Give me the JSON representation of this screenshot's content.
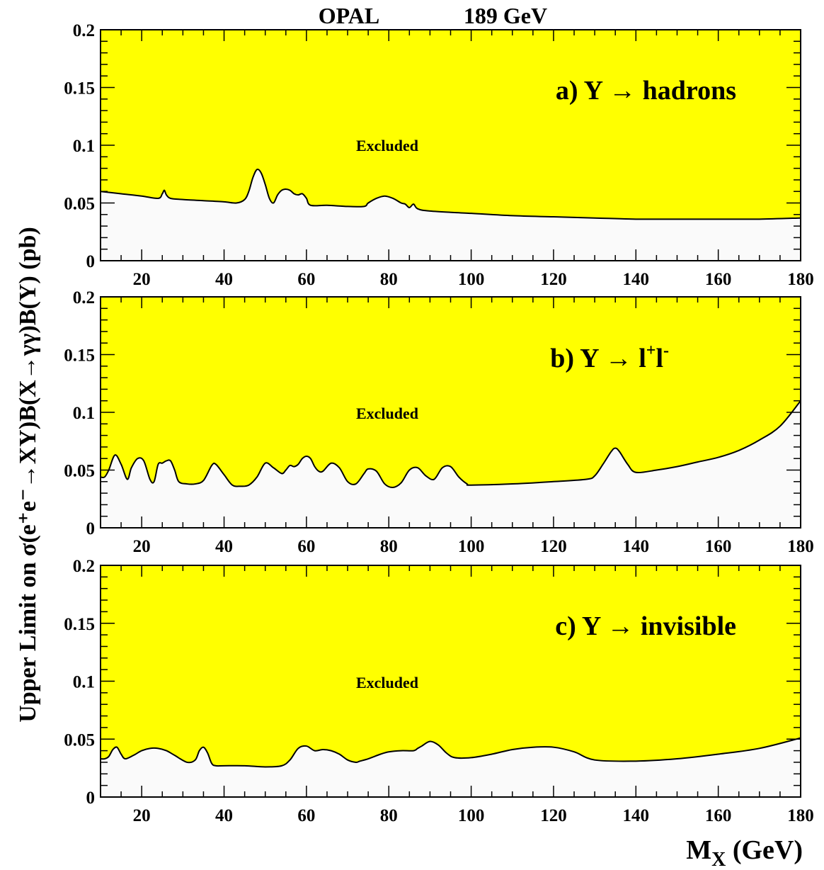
{
  "title_left": "OPAL",
  "title_right": "189 GeV",
  "ylabel": "Upper Limit on σ(e⁺e⁻→XY)B(X→γγ)B(Y) (pb)",
  "xlabel_main": "M",
  "xlabel_sub": "X",
  "xlabel_unit": " (GeV)",
  "excluded_label": "Excluded",
  "colors": {
    "excluded": "#ffff00",
    "allowed": "#fafafa",
    "line": "#000000"
  },
  "chart_data": [
    {
      "type": "area",
      "panel_label": "a) Y → hadrons",
      "xlim": [
        10,
        180
      ],
      "ylim": [
        0,
        0.2
      ],
      "x_ticks": [
        "20",
        "40",
        "60",
        "80",
        "100",
        "120",
        "140",
        "160",
        "180"
      ],
      "y_ticks": [
        "0",
        "0.05",
        "0.1",
        "0.15",
        "0.2"
      ],
      "x": [
        10,
        15,
        20,
        24,
        25,
        25.5,
        26,
        27,
        30,
        35,
        40,
        43,
        45,
        46,
        47,
        48,
        49,
        50,
        51,
        52,
        53,
        54,
        55,
        56,
        57,
        58,
        59,
        60,
        61,
        65,
        70,
        74,
        75,
        77,
        79,
        81,
        83,
        84,
        85,
        86,
        87,
        90,
        100,
        110,
        120,
        130,
        140,
        150,
        160,
        170,
        180
      ],
      "y": [
        0.06,
        0.058,
        0.056,
        0.054,
        0.058,
        0.061,
        0.057,
        0.054,
        0.053,
        0.052,
        0.051,
        0.05,
        0.053,
        0.06,
        0.072,
        0.079,
        0.076,
        0.066,
        0.054,
        0.05,
        0.057,
        0.061,
        0.062,
        0.061,
        0.058,
        0.057,
        0.058,
        0.054,
        0.048,
        0.048,
        0.047,
        0.047,
        0.05,
        0.054,
        0.056,
        0.054,
        0.05,
        0.049,
        0.046,
        0.049,
        0.045,
        0.043,
        0.041,
        0.039,
        0.038,
        0.037,
        0.036,
        0.036,
        0.036,
        0.036,
        0.037
      ]
    },
    {
      "type": "area",
      "panel_label_main": "b) Y → l",
      "panel_label_sup1": "+",
      "panel_label_mid": "l",
      "panel_label_sup2": "-",
      "xlim": [
        10,
        180
      ],
      "ylim": [
        0,
        0.2
      ],
      "x_ticks": [
        "20",
        "40",
        "60",
        "80",
        "100",
        "120",
        "140",
        "160",
        "180"
      ],
      "y_ticks": [
        "0",
        "0.05",
        "0.1",
        "0.15",
        "0.2"
      ],
      "x": [
        10,
        11,
        12,
        13.5,
        15,
        16.5,
        17.5,
        19,
        20.5,
        22,
        23,
        24,
        25,
        26,
        27,
        28,
        29,
        31,
        33,
        35,
        37,
        38,
        40,
        42,
        44,
        46,
        48,
        50,
        52,
        54,
        55,
        56,
        57,
        58,
        59,
        60,
        61,
        62,
        63,
        64,
        66,
        68,
        70,
        72,
        74,
        75,
        77,
        79,
        81,
        83,
        85,
        87,
        89,
        91,
        93,
        95,
        97,
        99,
        100,
        110,
        120,
        128,
        130,
        132,
        134,
        135,
        136,
        138,
        140,
        145,
        150,
        155,
        160,
        165,
        170,
        175,
        180
      ],
      "y": [
        0.044,
        0.044,
        0.05,
        0.063,
        0.055,
        0.042,
        0.052,
        0.06,
        0.058,
        0.042,
        0.04,
        0.055,
        0.056,
        0.058,
        0.058,
        0.05,
        0.04,
        0.038,
        0.038,
        0.041,
        0.054,
        0.055,
        0.046,
        0.037,
        0.036,
        0.037,
        0.044,
        0.056,
        0.052,
        0.047,
        0.05,
        0.054,
        0.053,
        0.055,
        0.06,
        0.062,
        0.06,
        0.053,
        0.049,
        0.049,
        0.056,
        0.052,
        0.04,
        0.038,
        0.047,
        0.051,
        0.049,
        0.038,
        0.035,
        0.039,
        0.05,
        0.052,
        0.045,
        0.042,
        0.052,
        0.053,
        0.044,
        0.038,
        0.037,
        0.038,
        0.04,
        0.042,
        0.045,
        0.055,
        0.066,
        0.069,
        0.066,
        0.055,
        0.048,
        0.05,
        0.053,
        0.057,
        0.061,
        0.067,
        0.076,
        0.088,
        0.11
      ]
    },
    {
      "type": "area",
      "panel_label": "c) Y → invisible",
      "xlim": [
        10,
        180
      ],
      "ylim": [
        0,
        0.2
      ],
      "x_ticks": [
        "20",
        "40",
        "60",
        "80",
        "100",
        "120",
        "140",
        "160",
        "180"
      ],
      "y_ticks": [
        "0",
        "0.05",
        "0.1",
        "0.15",
        "0.2"
      ],
      "x": [
        10,
        11,
        12,
        13,
        14,
        15,
        16,
        18,
        20,
        22,
        24,
        26,
        28,
        31,
        33,
        34,
        35,
        36,
        37,
        38,
        40,
        45,
        50,
        54,
        56,
        58,
        60,
        62,
        64,
        66,
        68,
        70,
        72,
        73,
        75,
        78,
        80,
        83,
        86,
        87,
        88,
        90,
        92,
        94,
        96,
        100,
        105,
        110,
        115,
        120,
        125,
        130,
        140,
        150,
        160,
        170,
        180
      ],
      "y": [
        0.033,
        0.033,
        0.035,
        0.041,
        0.043,
        0.037,
        0.033,
        0.036,
        0.04,
        0.042,
        0.042,
        0.04,
        0.036,
        0.03,
        0.032,
        0.04,
        0.043,
        0.038,
        0.029,
        0.027,
        0.027,
        0.027,
        0.026,
        0.027,
        0.032,
        0.042,
        0.044,
        0.04,
        0.041,
        0.04,
        0.037,
        0.032,
        0.03,
        0.031,
        0.033,
        0.037,
        0.039,
        0.04,
        0.04,
        0.042,
        0.044,
        0.048,
        0.045,
        0.038,
        0.034,
        0.034,
        0.037,
        0.041,
        0.043,
        0.043,
        0.039,
        0.032,
        0.031,
        0.033,
        0.037,
        0.042,
        0.051
      ]
    }
  ]
}
